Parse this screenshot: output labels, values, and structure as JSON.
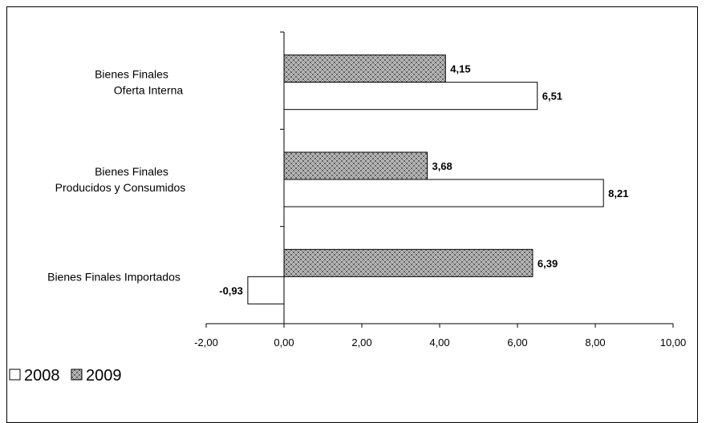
{
  "chart_data": {
    "type": "bar",
    "orientation": "horizontal",
    "categories": [
      [
        "Bienes Finales",
        "Oferta Interna"
      ],
      [
        "Bienes Finales",
        "Producidos y Consumidos"
      ],
      [
        "Bienes Finales Importados"
      ]
    ],
    "series": [
      {
        "name": "2009",
        "values": [
          4.15,
          3.68,
          6.39
        ],
        "data_labels": [
          "4,15",
          "3,68",
          "6,39"
        ],
        "fill": "crosshatch"
      },
      {
        "name": "2008",
        "values": [
          6.51,
          8.21,
          -0.93
        ],
        "data_labels": [
          "6,51",
          "8,21",
          "-0,93"
        ],
        "fill": "#ffffff"
      }
    ],
    "xlim": [
      -2,
      10
    ],
    "xticks": [
      -2,
      0,
      2,
      4,
      6,
      8,
      10
    ],
    "xtick_labels": [
      "-2,00",
      "0,00",
      "2,00",
      "4,00",
      "6,00",
      "8,00",
      "10,00"
    ],
    "legend": {
      "placement": "bottom-left",
      "entries": [
        {
          "label": "2008",
          "swatch": "white"
        },
        {
          "label": "2009",
          "swatch": "crosshatch"
        }
      ]
    },
    "grid": false,
    "title": "",
    "xlabel": "",
    "ylabel": ""
  },
  "colors": {
    "axis": "#000000",
    "bar_stroke": "#000000",
    "pattern_bg": "#ffffff",
    "pattern_fg": "#555555"
  }
}
